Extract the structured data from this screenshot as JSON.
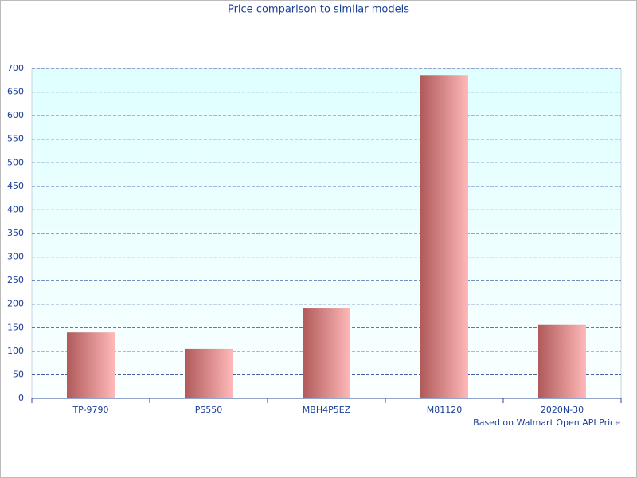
{
  "chart_data": {
    "type": "bar",
    "title": "Price comparison to similar models",
    "note": "Based on Walmart Open API Price",
    "categories": [
      "TP-9790",
      "PS550",
      "MBH4P5EZ",
      "M81120",
      "2020N-30"
    ],
    "values": [
      140,
      105,
      191,
      686,
      156
    ],
    "colors": [
      "#b05a5a",
      "#ffb8b8"
    ],
    "ylim": [
      0,
      700
    ],
    "yticks": [
      0,
      50,
      100,
      150,
      200,
      250,
      300,
      350,
      400,
      450,
      500,
      550,
      600,
      650,
      700
    ],
    "grid": true
  }
}
